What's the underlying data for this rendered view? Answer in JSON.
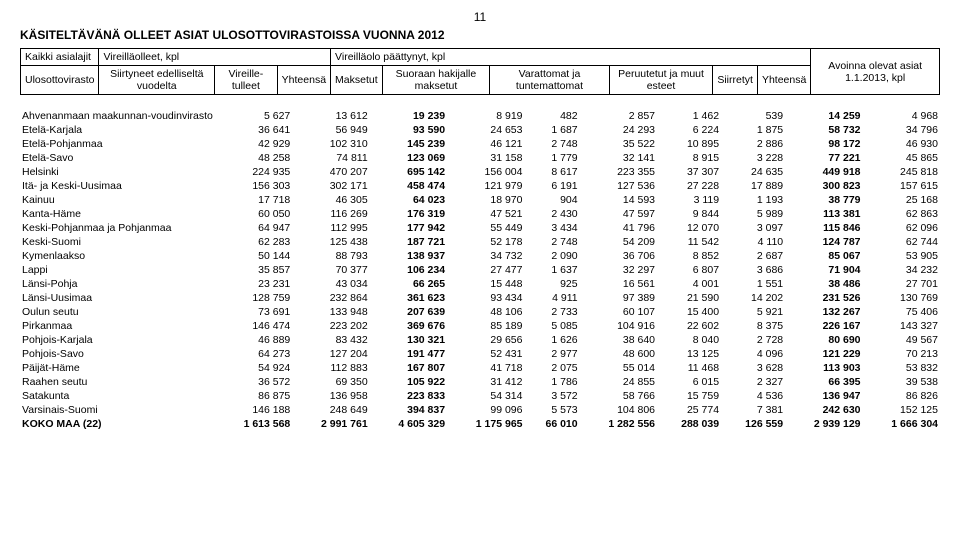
{
  "page_number": "11",
  "title": "KÄSITELTÄVÄNÄ OLLEET ASIAT ULOSOTTOVIRASTOISSA VUONNA 2012",
  "headers": {
    "col1": "Kaikki asialajit",
    "col2_group": "Vireilläolleet, kpl",
    "col3_group": "Vireilläolo päättynyt, kpl",
    "col_office": "Ulosottovirasto",
    "sub": {
      "siirtyneet": "Siirtyneet edelliseltä vuodelta",
      "vireille": "Vireille-tulleet",
      "yhteensa1": "Yhteensä",
      "maksetut": "Maksetut",
      "suoraan": "Suoraan hakijalle maksetut",
      "varattomat": "Varattomat ja tuntemattomat",
      "peruutetut": "Peruutetut ja muut esteet",
      "siirretyt": "Siirretyt",
      "yhteensa2": "Yhteensä",
      "avoinna": "Avoinna olevat asiat 1.1.2013, kpl"
    }
  },
  "rows": [
    {
      "name": "Ahvenanmaan maakunnan-voudinvirasto",
      "c": [
        "5 627",
        "13 612",
        "19 239",
        "8 919",
        "482",
        "2 857",
        "1 462",
        "539",
        "14 259",
        "4 968"
      ]
    },
    {
      "name": "Etelä-Karjala",
      "c": [
        "36 641",
        "56 949",
        "93 590",
        "24 653",
        "1 687",
        "24 293",
        "6 224",
        "1 875",
        "58 732",
        "34 796"
      ]
    },
    {
      "name": "Etelä-Pohjanmaa",
      "c": [
        "42 929",
        "102 310",
        "145 239",
        "46 121",
        "2 748",
        "35 522",
        "10 895",
        "2 886",
        "98 172",
        "46 930"
      ]
    },
    {
      "name": "Etelä-Savo",
      "c": [
        "48 258",
        "74 811",
        "123 069",
        "31 158",
        "1 779",
        "32 141",
        "8 915",
        "3 228",
        "77 221",
        "45 865"
      ]
    },
    {
      "name": "Helsinki",
      "c": [
        "224 935",
        "470 207",
        "695 142",
        "156 004",
        "8 617",
        "223 355",
        "37 307",
        "24 635",
        "449 918",
        "245 818"
      ]
    },
    {
      "name": "Itä- ja Keski-Uusimaa",
      "c": [
        "156 303",
        "302 171",
        "458 474",
        "121 979",
        "6 191",
        "127 536",
        "27 228",
        "17 889",
        "300 823",
        "157 615"
      ]
    },
    {
      "name": "Kainuu",
      "c": [
        "17 718",
        "46 305",
        "64 023",
        "18 970",
        "904",
        "14 593",
        "3 119",
        "1 193",
        "38 779",
        "25 168"
      ]
    },
    {
      "name": "Kanta-Häme",
      "c": [
        "60 050",
        "116 269",
        "176 319",
        "47 521",
        "2 430",
        "47 597",
        "9 844",
        "5 989",
        "113 381",
        "62 863"
      ]
    },
    {
      "name": "Keski-Pohjanmaa ja Pohjanmaa",
      "c": [
        "64 947",
        "112 995",
        "177 942",
        "55 449",
        "3 434",
        "41 796",
        "12 070",
        "3 097",
        "115 846",
        "62 096"
      ]
    },
    {
      "name": "Keski-Suomi",
      "c": [
        "62 283",
        "125 438",
        "187 721",
        "52 178",
        "2 748",
        "54 209",
        "11 542",
        "4 110",
        "124 787",
        "62 744"
      ]
    },
    {
      "name": "Kymenlaakso",
      "c": [
        "50 144",
        "88 793",
        "138 937",
        "34 732",
        "2 090",
        "36 706",
        "8 852",
        "2 687",
        "85 067",
        "53 905"
      ]
    },
    {
      "name": "Lappi",
      "c": [
        "35 857",
        "70 377",
        "106 234",
        "27 477",
        "1 637",
        "32 297",
        "6 807",
        "3 686",
        "71 904",
        "34 232"
      ]
    },
    {
      "name": "Länsi-Pohja",
      "c": [
        "23 231",
        "43 034",
        "66 265",
        "15 448",
        "925",
        "16 561",
        "4 001",
        "1 551",
        "38 486",
        "27 701"
      ]
    },
    {
      "name": "Länsi-Uusimaa",
      "c": [
        "128 759",
        "232 864",
        "361 623",
        "93 434",
        "4 911",
        "97 389",
        "21 590",
        "14 202",
        "231 526",
        "130 769"
      ]
    },
    {
      "name": "Oulun seutu",
      "c": [
        "73 691",
        "133 948",
        "207 639",
        "48 106",
        "2 733",
        "60 107",
        "15 400",
        "5 921",
        "132 267",
        "75 406"
      ]
    },
    {
      "name": "Pirkanmaa",
      "c": [
        "146 474",
        "223 202",
        "369 676",
        "85 189",
        "5 085",
        "104 916",
        "22 602",
        "8 375",
        "226 167",
        "143 327"
      ]
    },
    {
      "name": "Pohjois-Karjala",
      "c": [
        "46 889",
        "83 432",
        "130 321",
        "29 656",
        "1 626",
        "38 640",
        "8 040",
        "2 728",
        "80 690",
        "49 567"
      ]
    },
    {
      "name": "Pohjois-Savo",
      "c": [
        "64 273",
        "127 204",
        "191 477",
        "52 431",
        "2 977",
        "48 600",
        "13 125",
        "4 096",
        "121 229",
        "70 213"
      ]
    },
    {
      "name": "Päijät-Häme",
      "c": [
        "54 924",
        "112 883",
        "167 807",
        "41 718",
        "2 075",
        "55 014",
        "11 468",
        "3 628",
        "113 903",
        "53 832"
      ]
    },
    {
      "name": "Raahen seutu",
      "c": [
        "36 572",
        "69 350",
        "105 922",
        "31 412",
        "1 786",
        "24 855",
        "6 015",
        "2 327",
        "66 395",
        "39 538"
      ]
    },
    {
      "name": "Satakunta",
      "c": [
        "86 875",
        "136 958",
        "223 833",
        "54 314",
        "3 572",
        "58 766",
        "15 759",
        "4 536",
        "136 947",
        "86 826"
      ]
    },
    {
      "name": "Varsinais-Suomi",
      "c": [
        "146 188",
        "248 649",
        "394 837",
        "99 096",
        "5 573",
        "104 806",
        "25 774",
        "7 381",
        "242 630",
        "152 125"
      ]
    }
  ],
  "total": {
    "name": "KOKO MAA (22)",
    "c": [
      "1 613 568",
      "2 991 761",
      "4 605 329",
      "1 175 965",
      "66 010",
      "1 282 556",
      "288 039",
      "126 559",
      "2 939 129",
      "1 666 304"
    ]
  }
}
